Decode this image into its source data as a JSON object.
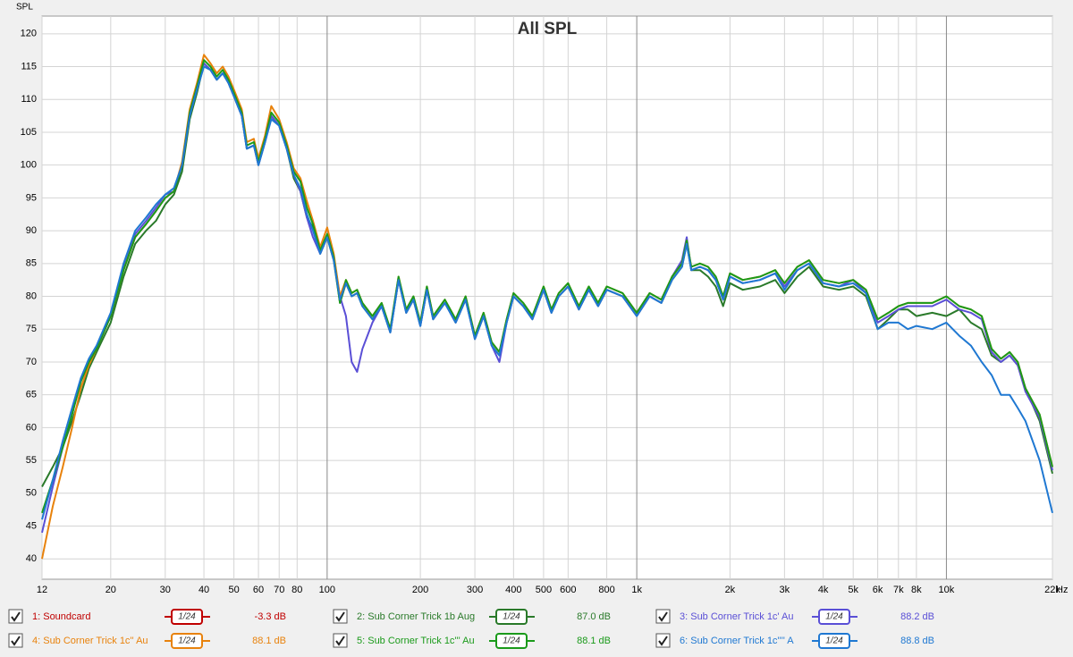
{
  "chart_data": {
    "type": "line",
    "title": "All SPL",
    "ylabel": "SPL",
    "xlabel": "Hz",
    "xscale": "log",
    "grid": true,
    "xlim": [
      12,
      22000
    ],
    "ylim": [
      36.9,
      122.7
    ],
    "yticks": [
      40,
      45,
      50,
      55,
      60,
      65,
      70,
      75,
      80,
      85,
      90,
      95,
      100,
      105,
      110,
      115,
      120
    ],
    "xticks": [
      12,
      20,
      30,
      40,
      50,
      60,
      70,
      80,
      100,
      200,
      300,
      400,
      500,
      600,
      800,
      {
        "value": 1000,
        "label": "1k"
      },
      {
        "value": 2000,
        "label": "2k"
      },
      {
        "value": 3000,
        "label": "3k"
      },
      {
        "value": 4000,
        "label": "4k"
      },
      {
        "value": 5000,
        "label": "5k"
      },
      {
        "value": 6000,
        "label": "6k"
      },
      {
        "value": 7000,
        "label": "7k"
      },
      {
        "value": 8000,
        "label": "8k"
      },
      {
        "value": 10000,
        "label": "10k"
      },
      {
        "value": 22000,
        "label": "22k"
      }
    ],
    "x": [
      12,
      13,
      14,
      15,
      16,
      17,
      18,
      20,
      22,
      24,
      26,
      28,
      30,
      32,
      34,
      36,
      38,
      40,
      42,
      44,
      46,
      48,
      50,
      53,
      55,
      58,
      60,
      63,
      66,
      70,
      74,
      78,
      82,
      86,
      90,
      95,
      100,
      105,
      110,
      115,
      120,
      125,
      130,
      140,
      150,
      160,
      170,
      180,
      190,
      200,
      210,
      220,
      240,
      260,
      280,
      300,
      320,
      340,
      360,
      380,
      400,
      430,
      460,
      500,
      530,
      560,
      600,
      650,
      700,
      750,
      800,
      900,
      1000,
      1100,
      1200,
      1300,
      1400,
      1450,
      1500,
      1600,
      1700,
      1800,
      1900,
      2000,
      2200,
      2500,
      2800,
      3000,
      3300,
      3600,
      4000,
      4500,
      5000,
      5500,
      6000,
      6500,
      7000,
      7500,
      8000,
      9000,
      10000,
      11000,
      12000,
      13000,
      14000,
      15000,
      16000,
      17000,
      18000,
      20000,
      22000
    ],
    "series": [
      {
        "name": "1: Soundcard",
        "color": "#c00000",
        "smoothing": "1/24",
        "level": "-3.3 dB"
      },
      {
        "name": "2: Sub Corner Trick 1b Aug",
        "color": "#2a7a2a",
        "smoothing": "1/24",
        "level": "87.0 dB",
        "values": [
          51,
          54,
          57,
          61,
          65,
          69,
          71.5,
          76,
          83,
          88,
          90,
          91.5,
          94,
          95.5,
          99,
          107,
          111,
          115.5,
          114.5,
          113,
          114,
          112.5,
          110.5,
          107.5,
          102.5,
          103,
          100,
          103.5,
          107.5,
          106,
          102.5,
          98,
          96,
          92,
          90.5,
          86.5,
          89,
          85.5,
          79,
          82,
          80,
          80.5,
          78.5,
          76.5,
          78.5,
          74.5,
          82.5,
          77.5,
          79.5,
          75.5,
          81,
          76.5,
          79,
          76,
          79.5,
          73.5,
          77,
          72.5,
          71,
          76,
          80,
          78.5,
          76.5,
          81,
          77.5,
          80,
          81.5,
          78,
          81,
          78.5,
          81,
          80,
          77,
          80,
          79,
          82.5,
          84.5,
          88,
          84,
          84,
          83,
          81.5,
          78.5,
          82,
          81,
          81.5,
          82.5,
          80.5,
          83,
          84.5,
          81.5,
          81,
          81.5,
          80,
          75,
          76.5,
          78,
          78,
          77,
          77.5,
          77,
          78,
          76,
          75,
          71,
          70,
          71,
          69.5,
          66,
          61,
          53
        ]
      },
      {
        "name": "3: Sub Corner Trick 1c' Au",
        "color": "#5a4fd6",
        "smoothing": "1/24",
        "level": "88.2 dB",
        "values": [
          44,
          51,
          57,
          62,
          67,
          70,
          72,
          77,
          84.5,
          89.5,
          91.5,
          93.5,
          95.5,
          96,
          100,
          108,
          112,
          115.5,
          114.5,
          113,
          114,
          112.5,
          110.5,
          107.5,
          102.5,
          103,
          100,
          103.5,
          107.5,
          106,
          102.5,
          98.5,
          96,
          92,
          89,
          86.5,
          89,
          86,
          80,
          77,
          70,
          68.5,
          72,
          76,
          78.5,
          74.5,
          82.5,
          77.5,
          79.5,
          75.5,
          81,
          76.5,
          79,
          76,
          79.5,
          73.5,
          77,
          72.5,
          70,
          76,
          80,
          78.5,
          76.5,
          81,
          77.5,
          80,
          81.5,
          78,
          81,
          78.5,
          81,
          80,
          77,
          80,
          79,
          83,
          85.5,
          89,
          84,
          84.5,
          84,
          82.5,
          79.5,
          83,
          82,
          82.5,
          83.5,
          81.5,
          84,
          85,
          82,
          81.5,
          82.5,
          80.5,
          76,
          77,
          78,
          78.5,
          78.5,
          78.5,
          79.5,
          78,
          77.5,
          76.5,
          71.5,
          70,
          71,
          69.5,
          65.5,
          61.5,
          53.5
        ]
      },
      {
        "name": "4: Sub Corner Trick 1c'' Au",
        "color": "#e8820c",
        "smoothing": "1/24",
        "level": "88.1 dB",
        "values": [
          40,
          48,
          54,
          60,
          66,
          69.5,
          72,
          77,
          84,
          89,
          91,
          93,
          95,
          96,
          100.5,
          108.5,
          112.5,
          116.8,
          115.5,
          114,
          115,
          113.5,
          111.5,
          108.5,
          103.5,
          104,
          101,
          104.5,
          109,
          107,
          103.5,
          99.5,
          98,
          94.5,
          91.5,
          87.5,
          90.5,
          86.5,
          80,
          82.5,
          80.5,
          81,
          79,
          77,
          79,
          75,
          83,
          78,
          80,
          76,
          81.5,
          77,
          79.5,
          76.5,
          80,
          74,
          77.5,
          73,
          71.5,
          76.5,
          80.5,
          79,
          77,
          81.5,
          78,
          80.5,
          82,
          78.5,
          81.5,
          79,
          81.5,
          80.5,
          77.5,
          80.5,
          79.5,
          83,
          85,
          88.5,
          84.5,
          85,
          84.5,
          83,
          80,
          83.5,
          82.5,
          83,
          84,
          82,
          84.5,
          85.5,
          82.5,
          82,
          82.5,
          81,
          76.5,
          77.5,
          78.5,
          79,
          79,
          79,
          80,
          78.5,
          78,
          77,
          72,
          70.5,
          71.5,
          70,
          66,
          62,
          54
        ]
      },
      {
        "name": "5: Sub Corner Trick 1c''' Au",
        "color": "#1a9a1a",
        "smoothing": "1/24",
        "level": "88.1 dB",
        "values": [
          47,
          52,
          57,
          62,
          67,
          70,
          72,
          77,
          84,
          89,
          91,
          93,
          95,
          96,
          100,
          108,
          112,
          116,
          115,
          113.5,
          114.5,
          113,
          111,
          108,
          103,
          103.5,
          100.5,
          104,
          108,
          106.5,
          103,
          99,
          97.5,
          93.5,
          91,
          87,
          89.5,
          86,
          79,
          82.5,
          80.5,
          81,
          79,
          77,
          79,
          75,
          83,
          78,
          80,
          76,
          81.5,
          77,
          79.5,
          76.5,
          80,
          74,
          77.5,
          73,
          71.5,
          76.5,
          80.5,
          79,
          77,
          81.5,
          78,
          80.5,
          82,
          78.5,
          81.5,
          79,
          81.5,
          80.5,
          77.5,
          80.5,
          79.5,
          83,
          85,
          88.5,
          84.5,
          85,
          84.5,
          83,
          80,
          83.5,
          82.5,
          83,
          84,
          82,
          84.5,
          85.5,
          82.5,
          82,
          82.5,
          81,
          76.5,
          77.5,
          78.5,
          79,
          79,
          79,
          80,
          78.5,
          78,
          77,
          72,
          70.5,
          71.5,
          70,
          66,
          62,
          54
        ]
      },
      {
        "name": "6: Sub Corner Trick 1c'''' A",
        "color": "#1f78d2",
        "smoothing": "1/24",
        "level": "88.8 dB",
        "values": [
          46,
          52,
          58,
          63,
          67.5,
          70.5,
          72.5,
          77.5,
          85,
          90,
          92,
          94,
          95.5,
          96.5,
          100,
          107.5,
          111.5,
          115,
          114.5,
          113,
          114,
          112.5,
          110.5,
          107.5,
          102.5,
          103,
          100,
          103.5,
          107,
          106,
          102.5,
          98.5,
          96.5,
          92.5,
          90,
          86.5,
          89,
          85.5,
          79.5,
          82,
          80,
          80.5,
          78.5,
          76.5,
          78.5,
          74.5,
          82.5,
          77.5,
          79.5,
          75.5,
          81,
          76.5,
          79,
          76,
          79.5,
          73.5,
          77,
          72.5,
          71,
          76,
          80,
          78.5,
          76.5,
          81,
          77.5,
          80,
          81.5,
          78,
          81,
          78.5,
          81,
          80,
          77,
          80,
          79,
          82.5,
          84.5,
          88,
          84,
          84.5,
          84,
          82.5,
          79.5,
          83,
          82,
          82.5,
          83.5,
          81,
          84,
          85,
          82,
          81.5,
          82,
          80.5,
          75,
          76,
          76,
          75,
          75.5,
          75,
          76,
          74,
          72.5,
          70,
          68,
          65,
          65,
          63,
          61,
          55,
          47
        ]
      }
    ]
  }
}
